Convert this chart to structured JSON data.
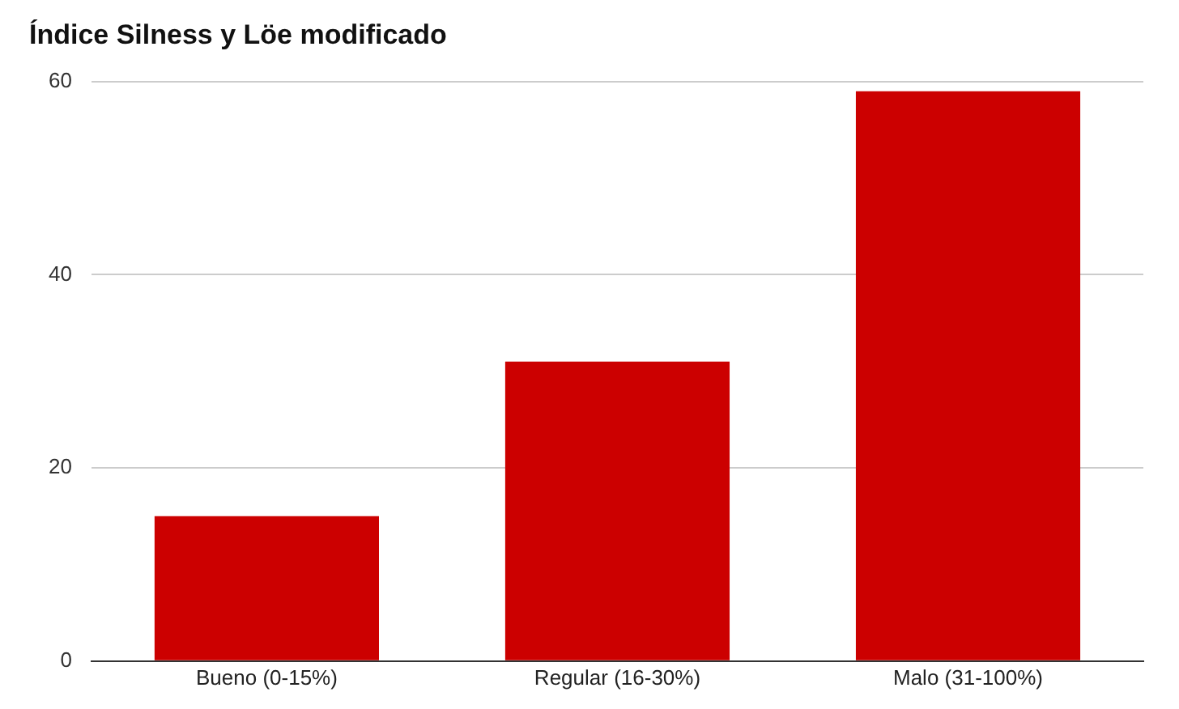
{
  "chart_data": {
    "type": "bar",
    "title": "Índice Silness y Löe modificado",
    "categories": [
      "Bueno (0-15%)",
      "Regular (16-30%)",
      "Malo (31-100%)"
    ],
    "values": [
      15,
      31,
      59
    ],
    "color": "#cc0000",
    "ylim": [
      0,
      60
    ],
    "yticks": [
      0,
      20,
      40,
      60
    ],
    "grid": "y"
  }
}
